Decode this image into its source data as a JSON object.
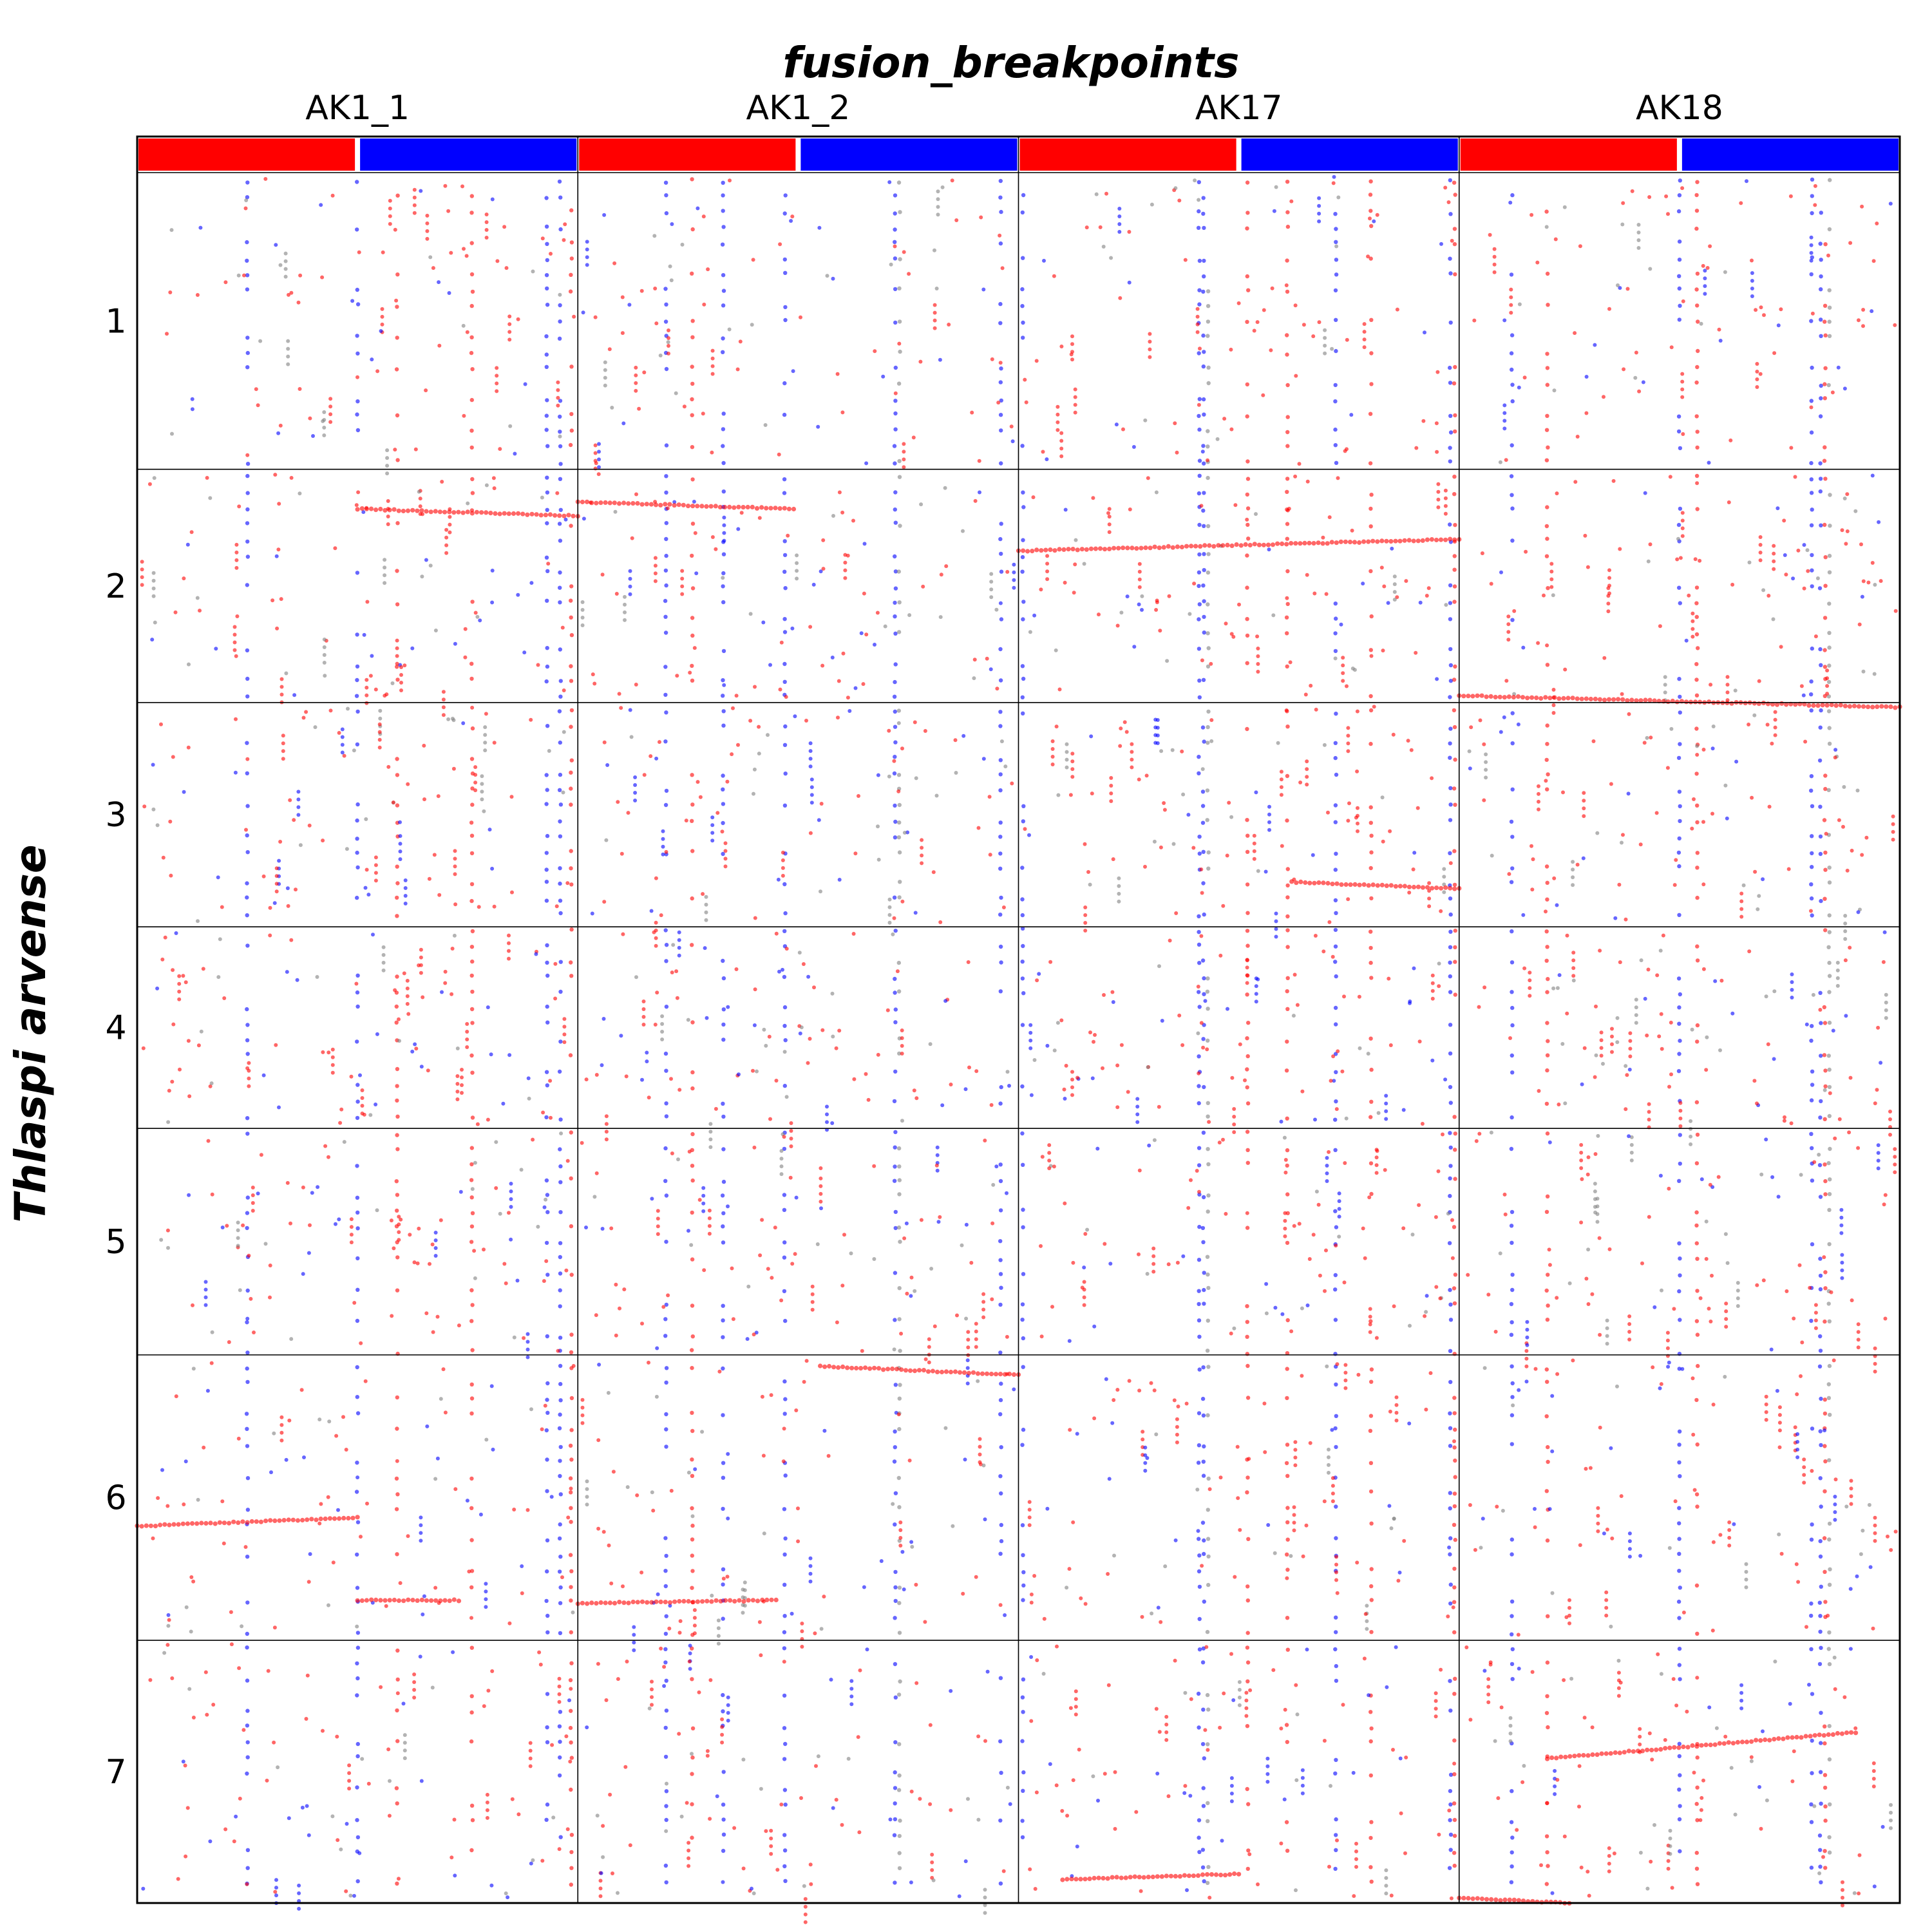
{
  "chart_data": {
    "type": "scatter",
    "title": "fusion_breakpoints",
    "xlabel": "",
    "ylabel": "Thlaspi arvense",
    "columns": [
      "AK1_1",
      "AK1_2",
      "AK17",
      "AK18"
    ],
    "rows": [
      "1",
      "2",
      "3",
      "4",
      "5",
      "6",
      "7"
    ],
    "column_widths": [
      1,
      1,
      1,
      1
    ],
    "row_heights": [
      1.31,
      1.03,
      0.99,
      0.89,
      1.0,
      1.26,
      1.16
    ],
    "header_bands": [
      {
        "color": "#ff0000",
        "start": 0.0,
        "end": 0.5
      },
      {
        "color": "#0000ff",
        "start": 0.5,
        "end": 1.0
      }
    ],
    "colors": {
      "red": "#ff0000",
      "blue": "#0000ff",
      "grey": "#808080"
    },
    "series": [
      {
        "col": 0,
        "row": 5,
        "x0": 0.0,
        "y0": 0.6,
        "x1": 0.5,
        "y1": 0.57,
        "color": "red"
      },
      {
        "col": 0,
        "row": 1,
        "x0": 0.5,
        "y0": 0.17,
        "x1": 1.0,
        "y1": 0.2,
        "color": "red"
      },
      {
        "col": 1,
        "row": 1,
        "x0": 0.0,
        "y0": 0.14,
        "x1": 0.49,
        "y1": 0.17,
        "color": "red"
      },
      {
        "col": 2,
        "row": 1,
        "x0": 0.0,
        "y0": 0.35,
        "x1": 1.0,
        "y1": 0.3,
        "color": "red"
      },
      {
        "col": 3,
        "row": 1,
        "x0": 0.0,
        "y0": 0.97,
        "x1": 1.0,
        "y1": 1.02,
        "color": "red"
      },
      {
        "col": 1,
        "row": 5,
        "x0": 0.55,
        "y0": 0.04,
        "x1": 1.0,
        "y1": 0.07,
        "color": "red"
      },
      {
        "col": 3,
        "row": 6,
        "x0": 0.2,
        "y0": 0.45,
        "x1": 0.9,
        "y1": 0.35,
        "color": "red"
      },
      {
        "col": 2,
        "row": 2,
        "x0": 0.62,
        "y0": 0.8,
        "x1": 1.0,
        "y1": 0.83,
        "color": "red"
      },
      {
        "col": 1,
        "row": 5,
        "x0": 0.0,
        "y0": 0.87,
        "x1": 0.45,
        "y1": 0.86,
        "color": "red"
      },
      {
        "col": 0,
        "row": 5,
        "x0": 0.5,
        "y0": 0.86,
        "x1": 0.73,
        "y1": 0.86,
        "color": "red"
      },
      {
        "col": 2,
        "row": 6,
        "x0": 0.1,
        "y0": 0.91,
        "x1": 0.5,
        "y1": 0.89,
        "color": "red"
      },
      {
        "col": 3,
        "row": 6,
        "x0": 0.0,
        "y0": 0.98,
        "x1": 0.25,
        "y1": 1.0,
        "color": "red"
      }
    ],
    "vertical_bands": [
      {
        "col": 0,
        "x": 0.25,
        "color": "blue"
      },
      {
        "col": 0,
        "x": 0.5,
        "color": "blue"
      },
      {
        "col": 0,
        "x": 0.59,
        "color": "red"
      },
      {
        "col": 0,
        "x": 0.76,
        "color": "red"
      },
      {
        "col": 0,
        "x": 0.93,
        "color": "blue"
      },
      {
        "col": 0,
        "x": 0.96,
        "color": "blue"
      },
      {
        "col": 0,
        "x": 0.985,
        "color": "red"
      },
      {
        "col": 1,
        "x": 0.2,
        "color": "blue"
      },
      {
        "col": 1,
        "x": 0.26,
        "color": "red"
      },
      {
        "col": 1,
        "x": 0.33,
        "color": "blue"
      },
      {
        "col": 1,
        "x": 0.47,
        "color": "blue"
      },
      {
        "col": 1,
        "x": 0.72,
        "color": "blue"
      },
      {
        "col": 1,
        "x": 0.73,
        "color": "grey"
      },
      {
        "col": 1,
        "x": 0.96,
        "color": "blue"
      },
      {
        "col": 2,
        "x": 0.01,
        "color": "blue"
      },
      {
        "col": 2,
        "x": 0.41,
        "color": "blue"
      },
      {
        "col": 2,
        "x": 0.42,
        "color": "blue"
      },
      {
        "col": 2,
        "x": 0.43,
        "color": "grey"
      },
      {
        "col": 2,
        "x": 0.52,
        "color": "red"
      },
      {
        "col": 2,
        "x": 0.61,
        "color": "red"
      },
      {
        "col": 2,
        "x": 0.72,
        "color": "blue"
      },
      {
        "col": 2,
        "x": 0.8,
        "color": "red"
      },
      {
        "col": 2,
        "x": 0.98,
        "color": "blue"
      },
      {
        "col": 2,
        "x": 0.99,
        "color": "red"
      },
      {
        "col": 3,
        "x": 0.12,
        "color": "blue"
      },
      {
        "col": 3,
        "x": 0.2,
        "color": "red"
      },
      {
        "col": 3,
        "x": 0.5,
        "color": "blue"
      },
      {
        "col": 3,
        "x": 0.54,
        "color": "red"
      },
      {
        "col": 3,
        "x": 0.8,
        "color": "blue"
      },
      {
        "col": 3,
        "x": 0.82,
        "color": "blue"
      },
      {
        "col": 3,
        "x": 0.83,
        "color": "red"
      },
      {
        "col": 3,
        "x": 0.84,
        "color": "grey"
      }
    ],
    "scatter_density": 90,
    "legend": "none",
    "grid": "panel-borders"
  }
}
